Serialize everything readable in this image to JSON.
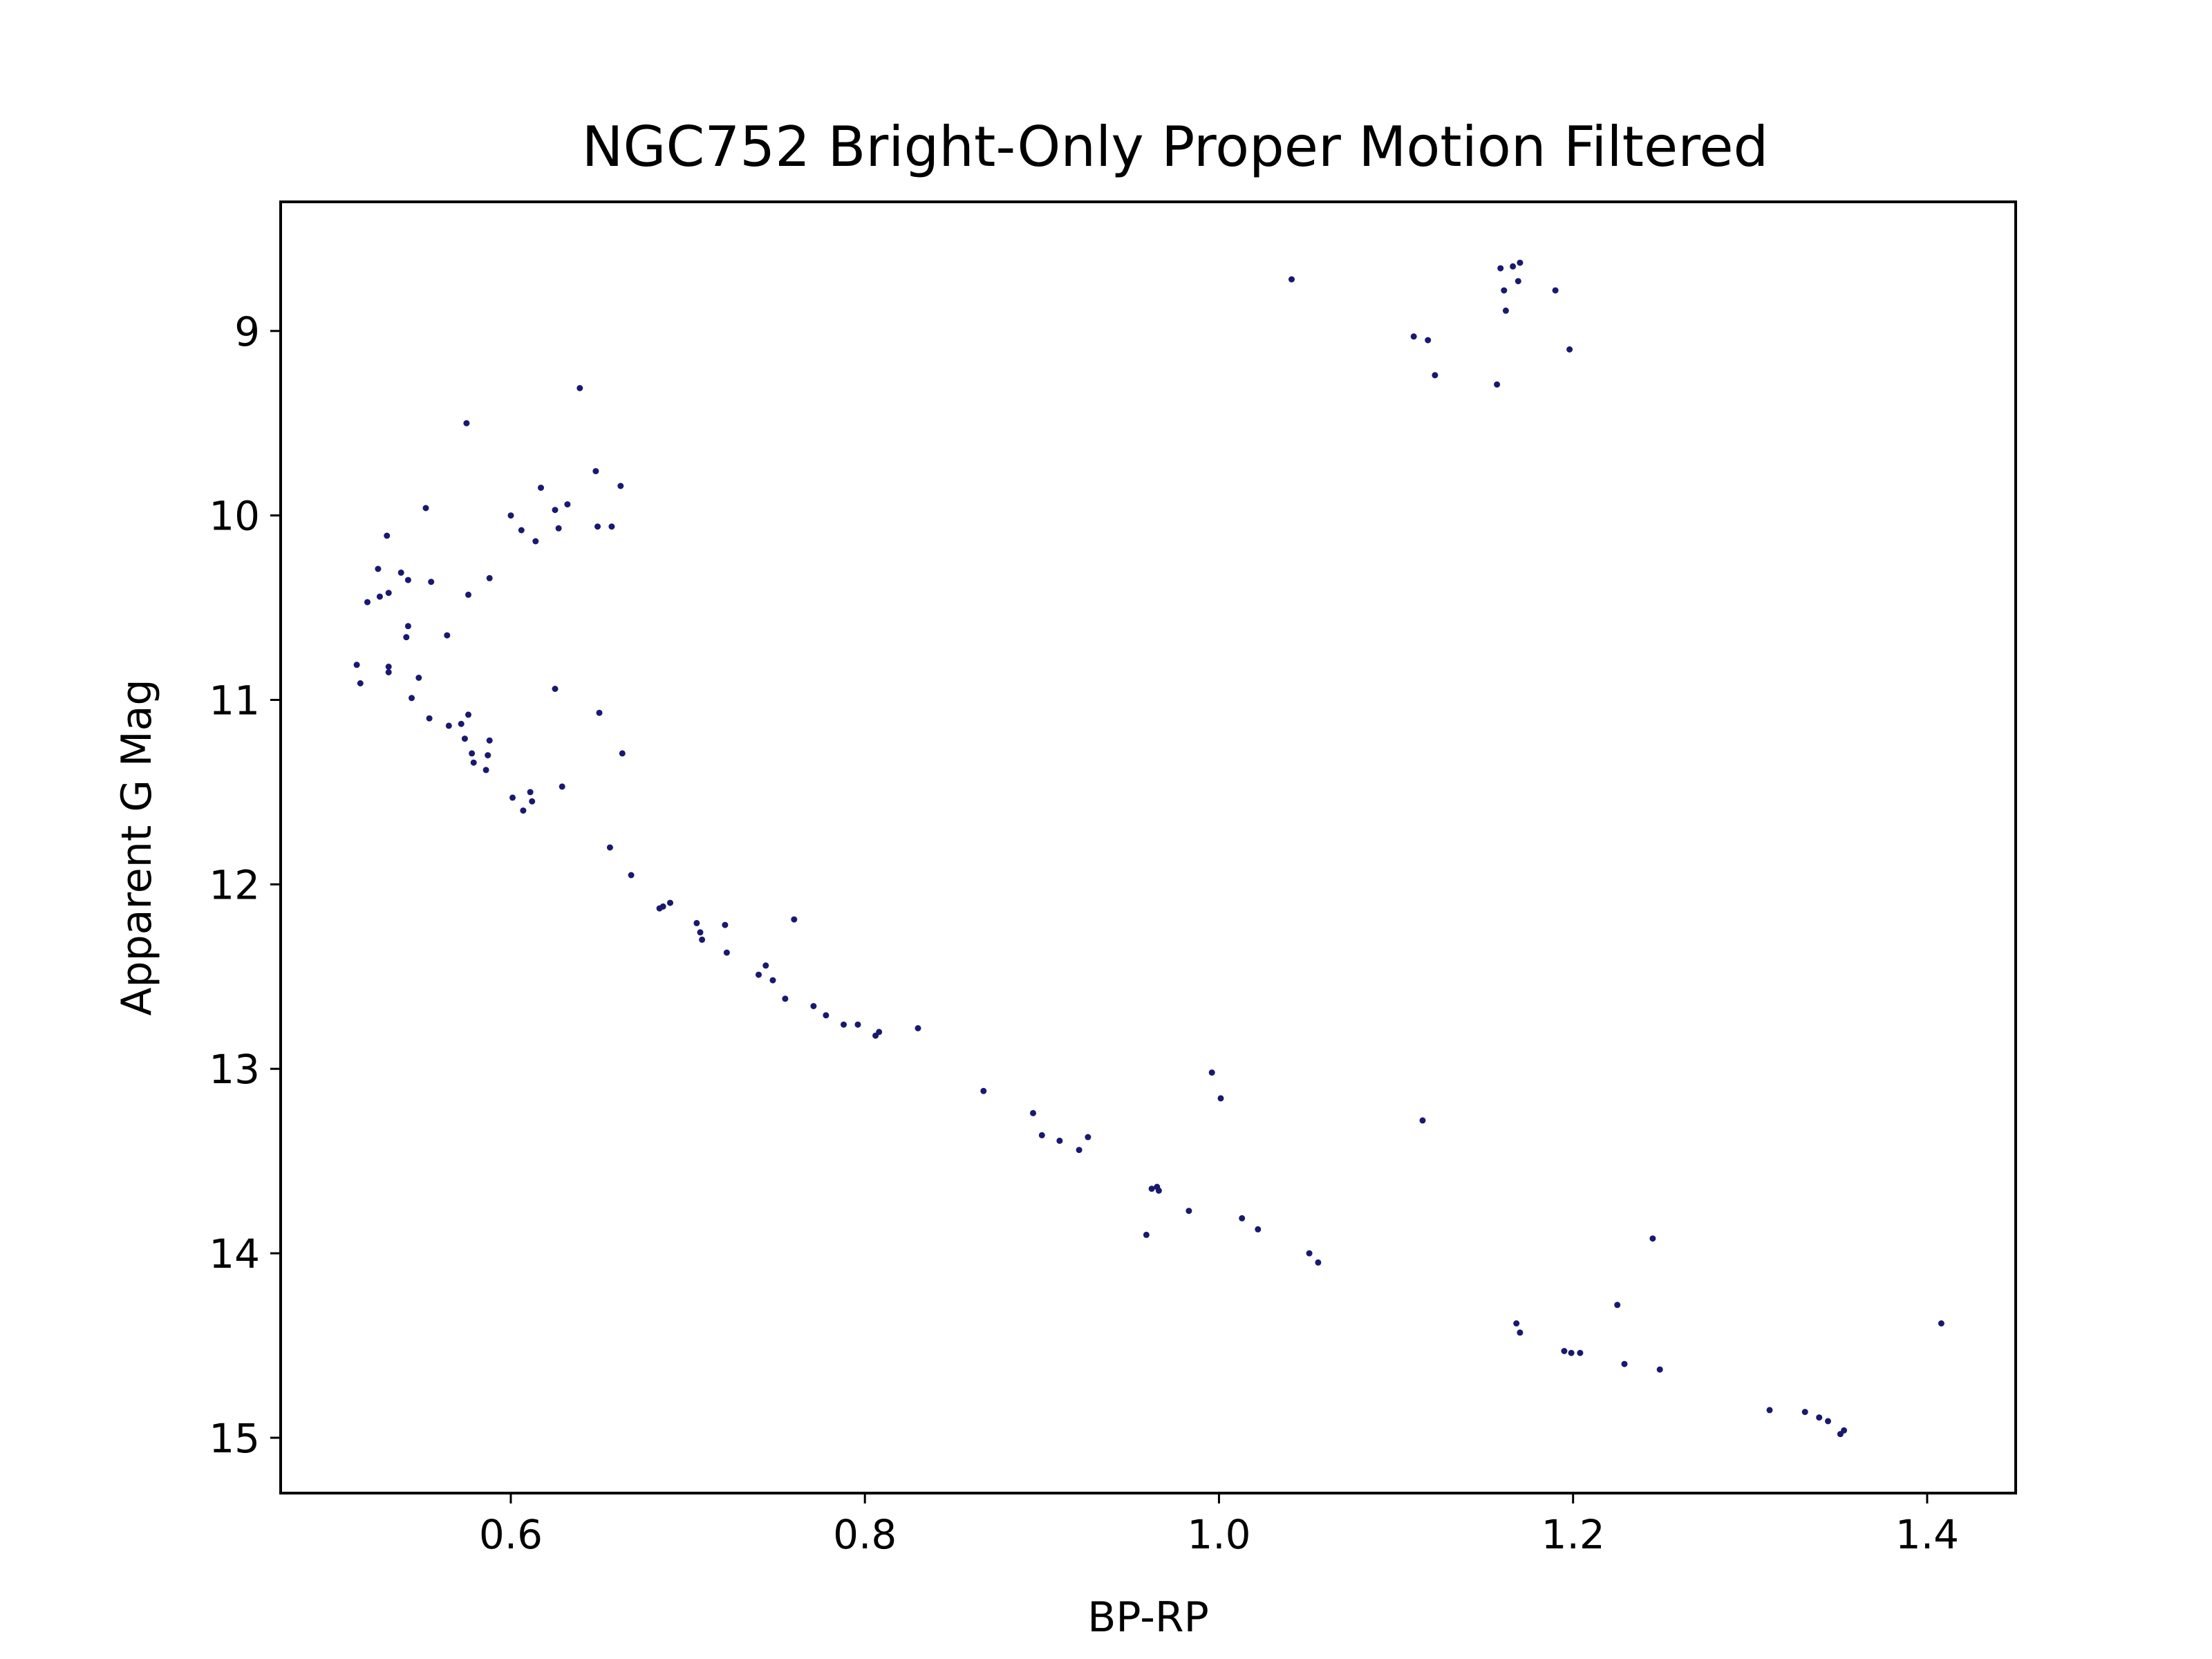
{
  "chart_data": {
    "type": "scatter",
    "title": "NGC752 Bright-Only Proper Motion Filtered",
    "xlabel": "BP-RP",
    "ylabel": "Apparent G Mag",
    "xlim": [
      0.47,
      1.45
    ],
    "ylim": [
      15.3,
      8.3
    ],
    "y_inverted": true,
    "grid": false,
    "legend": "none",
    "marker_color": "#191970",
    "xticks": [
      0.6,
      0.8,
      1.0,
      1.2,
      1.4
    ],
    "xtick_labels": [
      "0.6",
      "0.8",
      "1.0",
      "1.2",
      "1.4"
    ],
    "yticks": [
      9,
      10,
      11,
      12,
      13,
      14,
      15
    ],
    "ytick_labels": [
      "9",
      "10",
      "11",
      "12",
      "13",
      "14",
      "15"
    ],
    "series": [
      {
        "points": [
          [
            0.513,
            10.81
          ],
          [
            0.515,
            10.91
          ],
          [
            0.519,
            10.47
          ],
          [
            0.525,
            10.29
          ],
          [
            0.526,
            10.44
          ],
          [
            0.53,
            10.11
          ],
          [
            0.531,
            10.42
          ],
          [
            0.531,
            10.82
          ],
          [
            0.531,
            10.85
          ],
          [
            0.538,
            10.31
          ],
          [
            0.541,
            10.66
          ],
          [
            0.542,
            10.35
          ],
          [
            0.542,
            10.6
          ],
          [
            0.544,
            10.99
          ],
          [
            0.548,
            10.88
          ],
          [
            0.552,
            9.96
          ],
          [
            0.554,
            11.1
          ],
          [
            0.555,
            10.36
          ],
          [
            0.564,
            10.65
          ],
          [
            0.565,
            11.14
          ],
          [
            0.572,
            11.13
          ],
          [
            0.574,
            11.21
          ],
          [
            0.575,
            9.5
          ],
          [
            0.576,
            10.43
          ],
          [
            0.576,
            11.08
          ],
          [
            0.578,
            11.29
          ],
          [
            0.579,
            11.34
          ],
          [
            0.586,
            11.38
          ],
          [
            0.587,
            11.3
          ],
          [
            0.588,
            11.22
          ],
          [
            0.588,
            10.34
          ],
          [
            0.6,
            10.0
          ],
          [
            0.601,
            11.53
          ],
          [
            0.606,
            10.08
          ],
          [
            0.607,
            11.6
          ],
          [
            0.611,
            11.5
          ],
          [
            0.612,
            11.55
          ],
          [
            0.614,
            10.14
          ],
          [
            0.617,
            9.85
          ],
          [
            0.625,
            9.97
          ],
          [
            0.625,
            10.94
          ],
          [
            0.627,
            10.07
          ],
          [
            0.629,
            11.47
          ],
          [
            0.632,
            9.94
          ],
          [
            0.639,
            9.31
          ],
          [
            0.648,
            9.76
          ],
          [
            0.649,
            10.06
          ],
          [
            0.65,
            11.07
          ],
          [
            0.656,
            11.8
          ],
          [
            0.657,
            10.06
          ],
          [
            0.662,
            9.84
          ],
          [
            0.663,
            11.29
          ],
          [
            0.668,
            11.95
          ],
          [
            0.684,
            12.13
          ],
          [
            0.686,
            12.12
          ],
          [
            0.69,
            12.1
          ],
          [
            0.705,
            12.21
          ],
          [
            0.707,
            12.26
          ],
          [
            0.708,
            12.3
          ],
          [
            0.721,
            12.22
          ],
          [
            0.722,
            12.37
          ],
          [
            0.74,
            12.49
          ],
          [
            0.744,
            12.44
          ],
          [
            0.748,
            12.52
          ],
          [
            0.755,
            12.62
          ],
          [
            0.76,
            12.19
          ],
          [
            0.771,
            12.66
          ],
          [
            0.778,
            12.71
          ],
          [
            0.788,
            12.76
          ],
          [
            0.796,
            12.76
          ],
          [
            0.806,
            12.82
          ],
          [
            0.808,
            12.8
          ],
          [
            0.83,
            12.78
          ],
          [
            0.867,
            13.12
          ],
          [
            0.895,
            13.24
          ],
          [
            0.9,
            13.36
          ],
          [
            0.91,
            13.39
          ],
          [
            0.921,
            13.44
          ],
          [
            0.926,
            13.37
          ],
          [
            0.959,
            13.9
          ],
          [
            0.962,
            13.65
          ],
          [
            0.965,
            13.64
          ],
          [
            0.966,
            13.66
          ],
          [
            0.983,
            13.77
          ],
          [
            0.996,
            13.02
          ],
          [
            1.001,
            13.16
          ],
          [
            1.013,
            13.81
          ],
          [
            1.022,
            13.87
          ],
          [
            1.041,
            8.72
          ],
          [
            1.051,
            14.0
          ],
          [
            1.056,
            14.05
          ],
          [
            1.11,
            9.03
          ],
          [
            1.115,
            13.28
          ],
          [
            1.118,
            9.05
          ],
          [
            1.122,
            9.24
          ],
          [
            1.157,
            9.29
          ],
          [
            1.159,
            8.66
          ],
          [
            1.161,
            8.78
          ],
          [
            1.162,
            8.89
          ],
          [
            1.166,
            8.65
          ],
          [
            1.168,
            14.38
          ],
          [
            1.169,
            8.73
          ],
          [
            1.17,
            8.63
          ],
          [
            1.17,
            14.43
          ],
          [
            1.19,
            8.78
          ],
          [
            1.195,
            14.53
          ],
          [
            1.198,
            9.1
          ],
          [
            1.199,
            14.54
          ],
          [
            1.204,
            14.54
          ],
          [
            1.225,
            14.28
          ],
          [
            1.229,
            14.6
          ],
          [
            1.245,
            13.92
          ],
          [
            1.249,
            14.63
          ],
          [
            1.311,
            14.85
          ],
          [
            1.331,
            14.86
          ],
          [
            1.339,
            14.89
          ],
          [
            1.344,
            14.91
          ],
          [
            1.351,
            14.98
          ],
          [
            1.353,
            14.96
          ],
          [
            1.408,
            14.38
          ]
        ]
      }
    ]
  }
}
